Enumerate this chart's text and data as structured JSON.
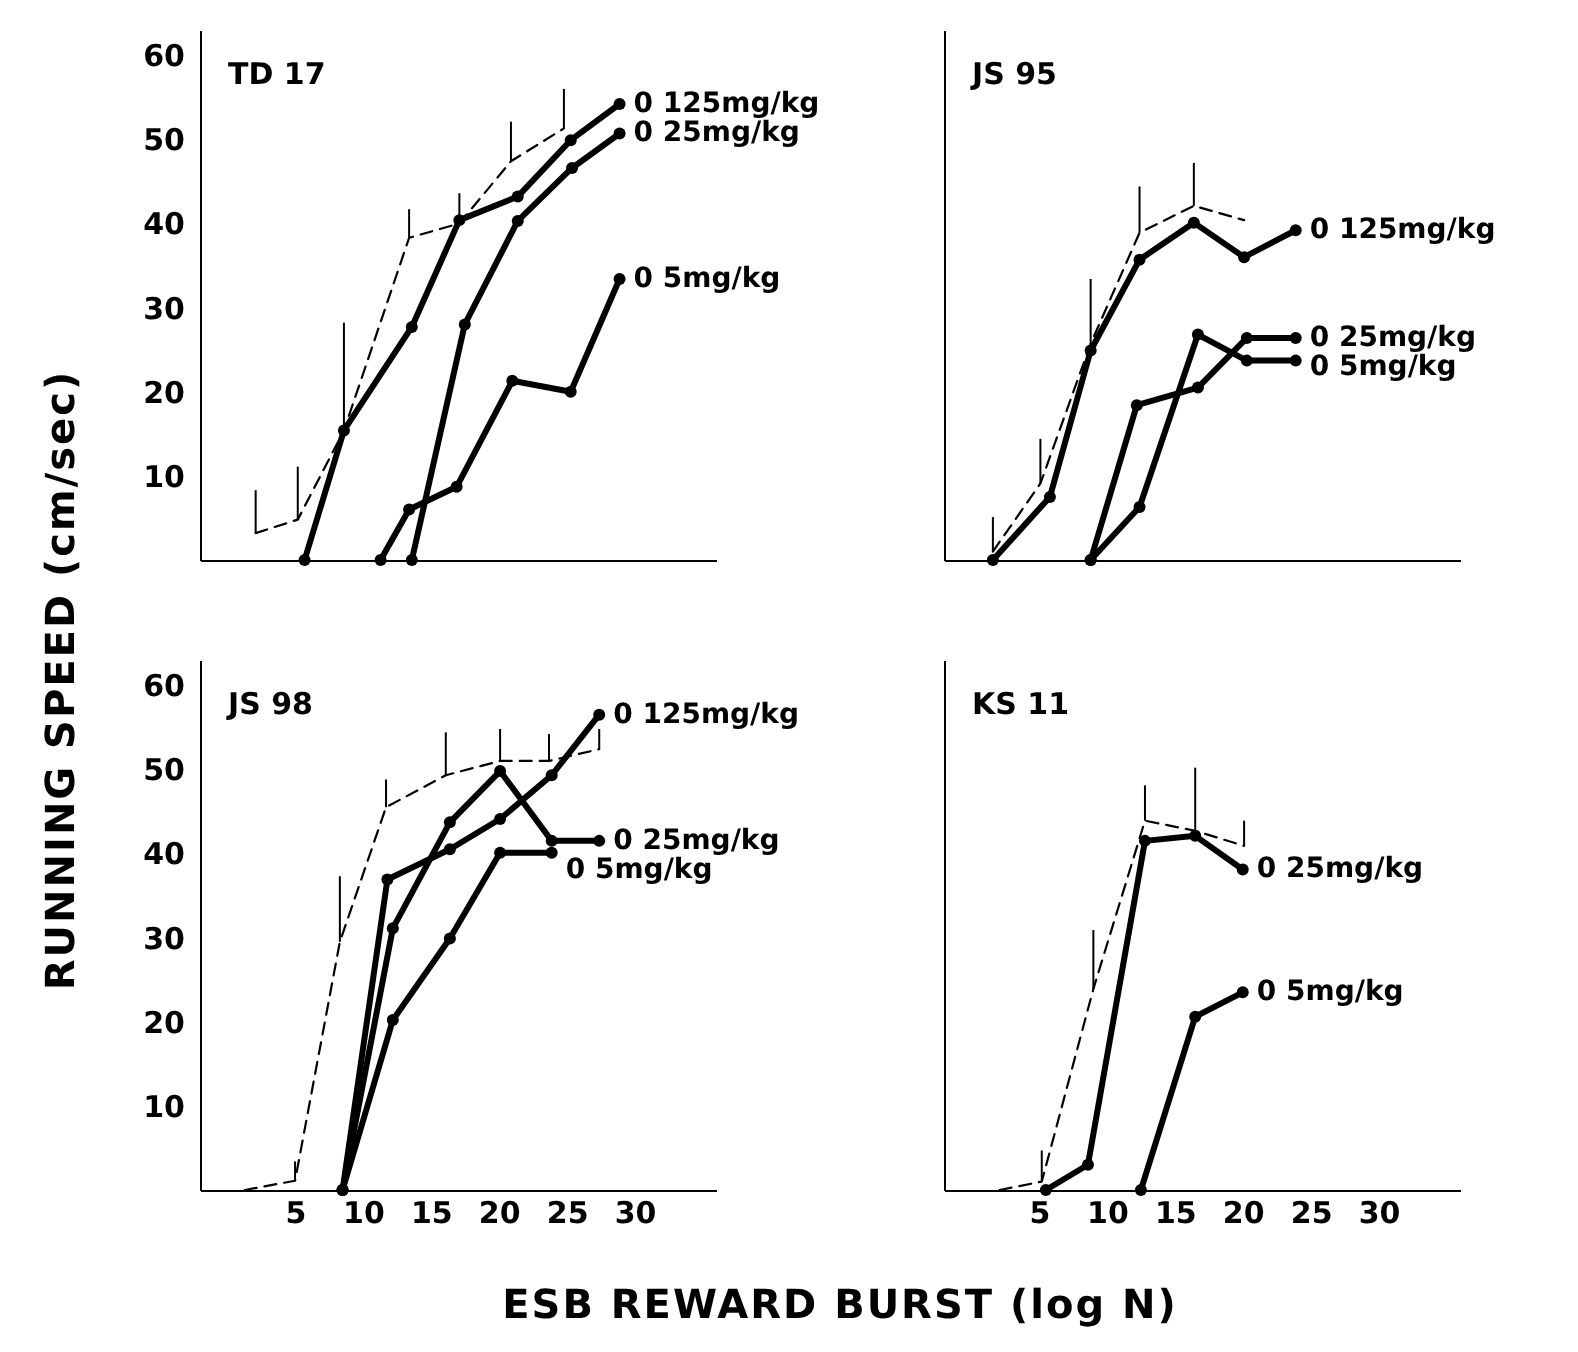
{
  "chart_data": [
    {
      "type": "line",
      "title": "TD 17",
      "ylabel": "RUNNING SPEED (cm/sec)",
      "xlim": [
        -2,
        36
      ],
      "xticks": [
        5,
        10,
        15,
        20,
        25,
        30
      ],
      "ylim": [
        0,
        63
      ],
      "yticks": [
        10,
        20,
        30,
        40,
        50,
        60
      ],
      "tick_labels": "y",
      "marker": "circle",
      "series": [
        {
          "color": "#000000",
          "line_style": "dashed",
          "marker": "none",
          "x": [
            2.1,
            5.2,
            8.6,
            13.4,
            17.1,
            20.9,
            24.8
          ],
          "values": [
            3.2,
            4.8,
            15.4,
            38.3,
            40,
            47.4,
            51.3
          ],
          "errors": [
            [
              3.2,
              8.3
            ],
            [
              4.8,
              11.1
            ],
            [
              15.4,
              28.2
            ],
            [
              38.3,
              41.7
            ],
            [
              40,
              43.6
            ],
            [
              47.4,
              52.1
            ],
            [
              51.3,
              56
            ]
          ]
        },
        {
          "name": "0 125mg/kg",
          "color": "#000000",
          "x": [
            5.7,
            8.6,
            13.6,
            17.1,
            21.4,
            25.3,
            28.9
          ],
          "values": [
            0,
            15.4,
            27.7,
            40.4,
            43.2,
            49.9,
            54.2
          ]
        },
        {
          "name": "0 25mg/kg",
          "color": "#000000",
          "x": [
            13.6,
            17.5,
            21.4,
            25.4,
            28.9
          ],
          "values": [
            0,
            28,
            40.3,
            46.6,
            50.7
          ]
        },
        {
          "name": "0 5mg/kg",
          "color": "#000000",
          "x": [
            11.3,
            13.4,
            16.9,
            21,
            25.3,
            28.9
          ],
          "values": [
            0,
            6,
            8.7,
            21.3,
            20,
            33.4
          ]
        }
      ]
    },
    {
      "type": "line",
      "title": "JS 95",
      "xlim": [
        -2,
        36
      ],
      "xticks": [
        5,
        10,
        15,
        20,
        25,
        30
      ],
      "ylim": [
        0,
        63
      ],
      "yticks": [
        10,
        20,
        30,
        40,
        50,
        60
      ],
      "tick_labels": false,
      "marker": "circle",
      "series": [
        {
          "color": "#000000",
          "line_style": "dashed",
          "marker": "none",
          "x": [
            1.6,
            5.1,
            8.8,
            12.4,
            16.4,
            20.1
          ],
          "values": [
            1,
            9.1,
            25.7,
            38.9,
            42.1,
            40.4
          ],
          "errors": [
            [
              1,
              5.1
            ],
            [
              9.1,
              14.4
            ],
            [
              25.7,
              33.4
            ],
            [
              38.9,
              44.4
            ],
            [
              42.1,
              47.2
            ],
            null
          ]
        },
        {
          "name": "0 125mg/kg",
          "color": "#000000",
          "x": [
            1.6,
            5.8,
            8.8,
            12.4,
            16.4,
            20.1,
            23.9
          ],
          "values": [
            0,
            7.5,
            24.9,
            35.7,
            40.1,
            36,
            39.2
          ]
        },
        {
          "name": "0 25mg/kg",
          "color": "#000000",
          "x": [
            8.8,
            12.2,
            16.7,
            20.3,
            23.9
          ],
          "values": [
            0,
            18.4,
            20.5,
            26.4,
            26.4
          ]
        },
        {
          "name": "0 5mg/kg",
          "color": "#000000",
          "x": [
            8.8,
            12.4,
            16.7,
            20.3,
            23.9
          ],
          "values": [
            0,
            6.3,
            26.8,
            23.7,
            23.7
          ]
        }
      ]
    },
    {
      "type": "line",
      "title": "JS 98",
      "xlabel": "ESB  REWARD  BURST (log N)",
      "xlim": [
        -2,
        36
      ],
      "xticks": [
        5,
        10,
        15,
        20,
        25,
        30
      ],
      "ylim": [
        0,
        63
      ],
      "yticks": [
        10,
        20,
        30,
        40,
        50,
        60
      ],
      "marker": "circle",
      "series": [
        {
          "color": "#000000",
          "line_style": "dashed",
          "marker": "none",
          "x": [
            1.3,
            5,
            8.3,
            11.7,
            16.1,
            20.1,
            23.7,
            27.4
          ],
          "values": [
            0,
            1.1,
            29.5,
            45.5,
            49.3,
            51,
            51,
            52.4
          ],
          "errors": [
            null,
            [
              1.1,
              3.4
            ],
            [
              29.5,
              37.3
            ],
            [
              45.5,
              48.8
            ],
            [
              49.3,
              54.4
            ],
            [
              51,
              54.8
            ],
            [
              51,
              54.2
            ],
            [
              52.4,
              54.8
            ]
          ]
        },
        {
          "name": "0 125mg/kg",
          "color": "#000000",
          "x": [
            8.5,
            11.8,
            16.4,
            20.1,
            23.9,
            27.4
          ],
          "values": [
            0,
            36.9,
            40.5,
            44.1,
            49.3,
            56.5
          ]
        },
        {
          "name": "0 25mg/kg",
          "color": "#000000",
          "x": [
            8.5,
            12.2,
            16.4,
            20.1,
            23.9,
            27.4
          ],
          "values": [
            0,
            31.1,
            43.7,
            49.8,
            41.5,
            41.5
          ]
        },
        {
          "name": "0 5mg/kg",
          "color": "#000000",
          "x": [
            8.5,
            12.2,
            16.4,
            20.1,
            23.9
          ],
          "values": [
            0,
            20.2,
            29.9,
            40.1,
            40.1
          ]
        }
      ]
    },
    {
      "type": "line",
      "title": "KS 11",
      "xlim": [
        -2,
        36
      ],
      "xticks": [
        5,
        10,
        15,
        20,
        25,
        30
      ],
      "ylim": [
        0,
        63
      ],
      "yticks": [
        10,
        20,
        30,
        40,
        50,
        60
      ],
      "tick_labels": "x",
      "marker": "circle",
      "series": [
        {
          "color": "#000000",
          "line_style": "dashed",
          "marker": "none",
          "x": [
            2.1,
            5.2,
            9,
            12.8,
            16.5,
            20.1
          ],
          "values": [
            0,
            1,
            23.9,
            43.9,
            42.7,
            40.9
          ],
          "errors": [
            null,
            [
              1,
              4.7
            ],
            [
              23.9,
              30.9
            ],
            [
              43.9,
              48.1
            ],
            [
              42.7,
              50.2
            ],
            [
              40.9,
              43.9
            ]
          ]
        },
        {
          "name": "0 25mg/kg",
          "color": "#000000",
          "x": [
            5.5,
            8.6,
            12.8,
            16.5,
            20
          ],
          "values": [
            0,
            3,
            41.5,
            42.1,
            38.1
          ]
        },
        {
          "name": "0 5mg/kg",
          "color": "#000000",
          "x": [
            12.5,
            16.5,
            20
          ],
          "values": [
            0,
            20.6,
            23.5
          ]
        }
      ]
    }
  ]
}
